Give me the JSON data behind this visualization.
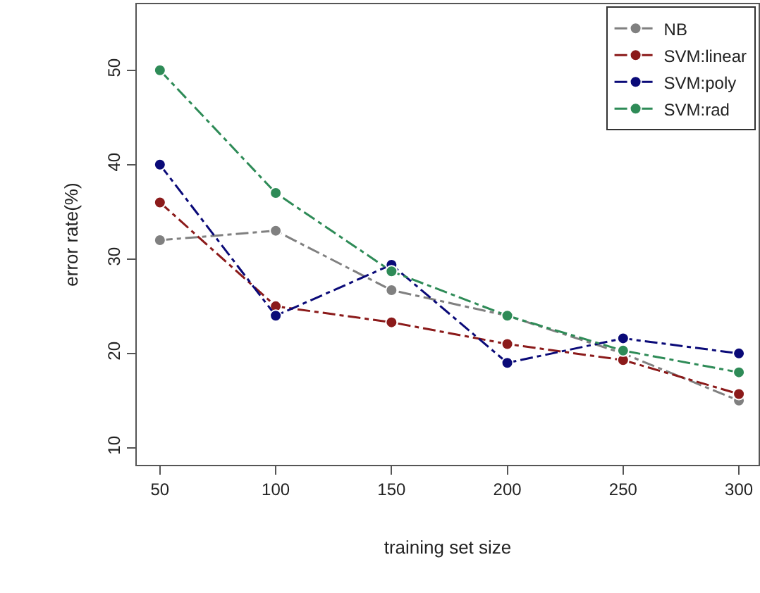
{
  "chart_data": {
    "type": "line",
    "xlabel": "training set size",
    "ylabel": "error rate(%)",
    "x": [
      50,
      100,
      150,
      200,
      250,
      300
    ],
    "series": [
      {
        "name": "NB",
        "color": "#808080",
        "values": [
          32,
          33,
          26.7,
          24,
          20,
          15
        ]
      },
      {
        "name": "SVM:linear",
        "color": "#8b1a1a",
        "values": [
          36,
          25,
          23.3,
          21,
          19.3,
          15.7
        ]
      },
      {
        "name": "SVM:poly",
        "color": "#0a0a78",
        "values": [
          40,
          24,
          29.4,
          19,
          21.6,
          20
        ]
      },
      {
        "name": "SVM:rad",
        "color": "#2e8b57",
        "values": [
          50,
          37,
          28.7,
          24,
          20.3,
          18
        ]
      }
    ],
    "xlim": [
      40,
      308.5
    ],
    "ylim": [
      8.2,
      57
    ],
    "xticks": [
      50,
      100,
      150,
      200,
      250,
      300
    ],
    "yticks": [
      10,
      20,
      30,
      40,
      50
    ],
    "legend": "top right",
    "marker": "circle",
    "line_style": "dashdot"
  }
}
